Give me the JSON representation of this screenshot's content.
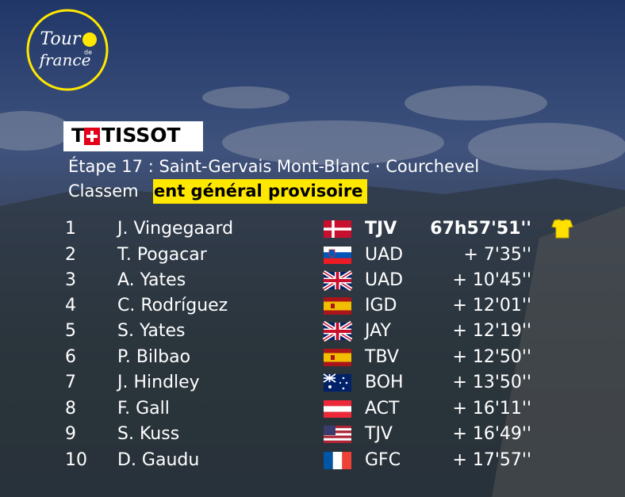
{
  "logo": {
    "line1": "Tour",
    "line2": "de",
    "line3": "france"
  },
  "sponsor": "TISSOT",
  "stage": "Étape 17 : Saint-Gervais Mont-Blanc · Courchevel",
  "title": {
    "plain": "Classem",
    "highlighted": "ent général provisoire"
  },
  "rows": [
    {
      "rank": "1",
      "rider": "J. Vingegaard",
      "team": "TJV",
      "time": "67h57'51''"
    },
    {
      "rank": "2",
      "rider": "T. Pogacar",
      "team": "UAD",
      "time": "+ 7'35''"
    },
    {
      "rank": "3",
      "rider": "A. Yates",
      "team": "UAD",
      "time": "+ 10'45''"
    },
    {
      "rank": "4",
      "rider": "C. Rodríguez",
      "team": "IGD",
      "time": "+ 12'01''"
    },
    {
      "rank": "5",
      "rider": "S. Yates",
      "team": "JAY",
      "time": "+ 12'19''"
    },
    {
      "rank": "6",
      "rider": "P. Bilbao",
      "team": "TBV",
      "time": "+ 12'50''"
    },
    {
      "rank": "7",
      "rider": "J. Hindley",
      "team": "BOH",
      "time": "+ 13'50''"
    },
    {
      "rank": "8",
      "rider": "F. Gall",
      "team": "ACT",
      "time": "+ 16'11''"
    },
    {
      "rank": "9",
      "rider": "S. Kuss",
      "team": "TJV",
      "time": "+ 16'49''"
    },
    {
      "rank": "10",
      "rider": "D. Gaudu",
      "team": "GFC",
      "time": "+ 17'57''"
    }
  ]
}
